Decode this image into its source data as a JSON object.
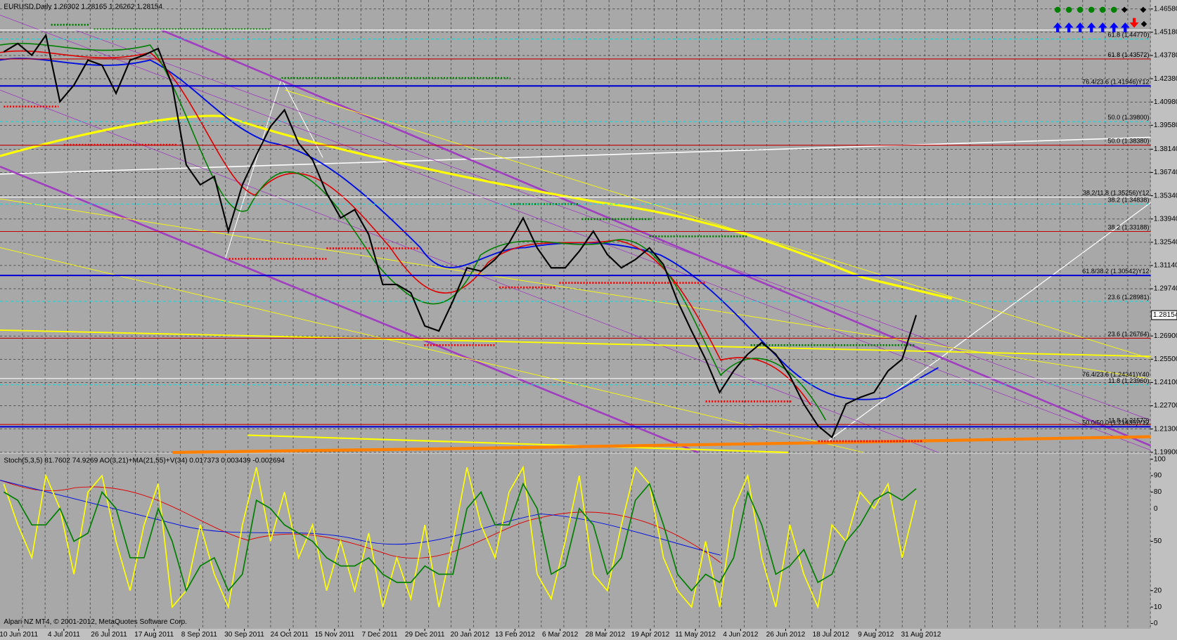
{
  "chart_data": [
    {
      "type": "line",
      "title": "EURUSD,Daily  1.26302 1.28165 1.26262 1.28154",
      "series": [
        {
          "color": "#000000",
          "values": [
            1.44,
            1.445,
            1.438,
            1.45,
            1.41,
            1.42,
            1.435,
            1.432,
            1.415,
            1.435,
            1.438,
            1.442,
            1.42,
            1.372,
            1.36,
            1.365,
            1.332,
            1.36,
            1.378,
            1.395,
            1.405,
            1.385,
            1.375,
            1.355,
            1.34,
            1.345,
            1.33,
            1.3,
            1.3,
            1.295,
            1.275,
            1.272,
            1.29,
            1.31,
            1.308,
            1.315,
            1.325,
            1.34,
            1.322,
            1.31,
            1.31,
            1.32,
            1.332,
            1.318,
            1.31,
            1.315,
            1.322,
            1.312,
            1.29,
            1.272,
            1.255,
            1.235,
            1.248,
            1.258,
            1.265,
            1.258,
            1.245,
            1.228,
            1.215,
            1.208,
            1.228,
            1.232,
            1.235,
            1.248,
            1.255,
            1.28154
          ]
        }
      ],
      "ylim": [
        1.1989,
        1.4712
      ],
      "yticks": [
        {
          "value": 1.4658,
          "label": "1.46580"
        },
        {
          "value": 1.4518,
          "label": "1.45180"
        },
        {
          "value": 1.4378,
          "label": "1.43780"
        },
        {
          "value": 1.4238,
          "label": "1.42380"
        },
        {
          "value": 1.4098,
          "label": "1.40980"
        },
        {
          "value": 1.3958,
          "label": "1.39580"
        },
        {
          "value": 1.3814,
          "label": "1.38140"
        },
        {
          "value": 1.3674,
          "label": "1.36740"
        },
        {
          "value": 1.3534,
          "label": "1.35340"
        },
        {
          "value": 1.3394,
          "label": "1.33940"
        },
        {
          "value": 1.3254,
          "label": "1.32540"
        },
        {
          "value": 1.3114,
          "label": "1.31140"
        },
        {
          "value": 1.2974,
          "label": "1.29740"
        },
        {
          "value": 1.269,
          "label": "1.26900"
        },
        {
          "value": 1.255,
          "label": "1.25500"
        },
        {
          "value": 1.241,
          "label": "1.24100"
        },
        {
          "value": 1.227,
          "label": "1.22700"
        },
        {
          "value": 1.213,
          "label": "1.21300"
        },
        {
          "value": 1.199,
          "label": "1.19900"
        }
      ],
      "current_price": 1.28154,
      "grid": true,
      "levels": [
        {
          "value": 1.4531,
          "color": "#ffffff"
        },
        {
          "value": 1.4477,
          "label": "61.8 (1.44770)",
          "color": "#00e0e0"
        },
        {
          "value": 1.43572,
          "label": "61.8 (1.43572)",
          "color": "#c00000"
        },
        {
          "value": 1.41946,
          "label": "76.4/23.6 (1.41946)Y12",
          "color": "#0000d0"
        },
        {
          "value": 1.398,
          "label": "50.0 (1.39800)",
          "color": "#00e0e0"
        },
        {
          "value": 1.3838,
          "label": "50.0 (1.38380)",
          "color": "#c00000"
        },
        {
          "value": 1.35256,
          "label": "38.2/11.8 (1.35256)Y12",
          "color": "#ffffff"
        },
        {
          "value": 1.34838,
          "label": "38.2 (1.34838)",
          "color": "#00e0e0"
        },
        {
          "value": 1.33188,
          "label": "38.2 (1.33188)",
          "color": "#c00000"
        },
        {
          "value": 1.30542,
          "label": "61.8/38.2 (1.30542)Y12",
          "color": "#0000d0"
        },
        {
          "value": 1.28981,
          "label": "23.6 (1.28981)",
          "color": "#00e0e0"
        },
        {
          "value": 1.26764,
          "label": "23.6 (1.26764)",
          "color": "#c00000"
        },
        {
          "value": 1.24341,
          "label": "76.4/23.6 (1.24341)Y40",
          "color": "#ffffff"
        },
        {
          "value": 1.2396,
          "label": "11.8 (1.23960)",
          "color": "#00e0e0"
        },
        {
          "value": 1.21572,
          "label": "11.8 (1.21572)",
          "color": "#c00000"
        },
        {
          "value": 1.21435,
          "label": "50.0/50.0 (1.21435)Y12",
          "color": "#0000d0"
        }
      ],
      "x_labels": [
        "10 Jun 2011",
        "4 Jul 2011",
        "26 Jul 2011",
        "17 Aug 2011",
        "8 Sep 2011",
        "30 Sep 2011",
        "24 Oct 2011",
        "15 Nov 2011",
        "7 Dec 2011",
        "29 Dec 2011",
        "20 Jan 2012",
        "13 Feb 2012",
        "6 Mar 2012",
        "28 Mar 2012",
        "19 Apr 2012",
        "11 May 2012",
        "4 Jun 2012",
        "26 Jun 2012",
        "18 Jul 2012",
        "9 Aug 2012",
        "31 Aug 2012"
      ]
    },
    {
      "type": "line",
      "title": "Stoch(5,3,5) 81.7602 74.9269  AO(3,21)+MA(21,55)+V(34) 0.017373 0.003439 -0.002694",
      "series": [
        {
          "color": "#ffff00",
          "values": [
            85,
            60,
            40,
            90,
            70,
            30,
            80,
            90,
            50,
            20,
            60,
            85,
            10,
            20,
            60,
            30,
            10,
            60,
            95,
            50,
            80,
            40,
            60,
            20,
            50,
            20,
            55,
            10,
            40,
            15,
            60,
            10,
            50,
            95,
            60,
            40,
            80,
            95,
            30,
            15,
            50,
            90,
            30,
            20,
            60,
            95,
            85,
            40,
            20,
            10,
            50,
            10,
            70,
            90,
            40,
            10,
            60,
            30,
            10,
            60,
            50,
            80,
            70,
            85,
            40,
            75
          ]
        },
        {
          "color": "#008000",
          "values": [
            80,
            75,
            60,
            60,
            70,
            50,
            55,
            80,
            70,
            40,
            40,
            70,
            50,
            20,
            35,
            40,
            20,
            30,
            75,
            70,
            60,
            55,
            50,
            40,
            35,
            35,
            40,
            30,
            25,
            25,
            35,
            30,
            30,
            70,
            80,
            60,
            60,
            85,
            70,
            30,
            35,
            70,
            60,
            30,
            40,
            75,
            85,
            60,
            30,
            20,
            30,
            25,
            40,
            80,
            60,
            30,
            35,
            45,
            25,
            30,
            50,
            60,
            75,
            80,
            75,
            82
          ]
        }
      ],
      "ylim": [
        -3.2,
        103.2
      ],
      "yticks": [
        100,
        90,
        80,
        50,
        20,
        10,
        0
      ],
      "ao_zero_label": "0",
      "footer": "Alpari NZ MT4, © 2001-2012, MetaQuotes Software Corp."
    }
  ]
}
